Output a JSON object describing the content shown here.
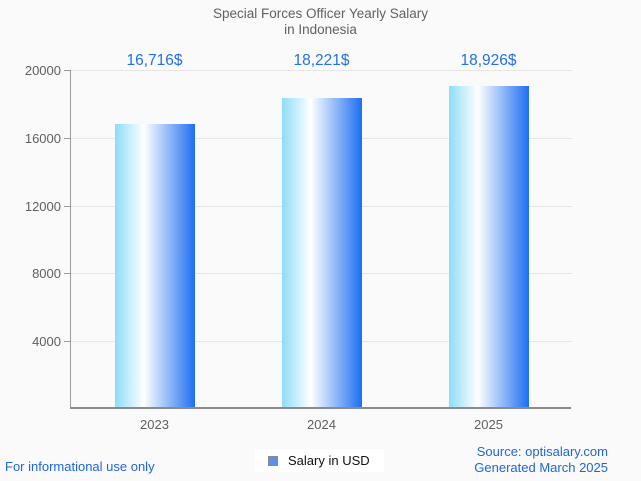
{
  "title": {
    "line1": "Special Forces Officer Yearly Salary",
    "line2": "in Indonesia"
  },
  "legend": {
    "label": "Salary in USD"
  },
  "footer": {
    "disclaimer": "For informational use only",
    "source": "Source: optisalary.com",
    "generated": "Generated March 2025"
  },
  "chart_data": {
    "type": "bar",
    "title": "Special Forces Officer Yearly Salary in Indonesia",
    "categories": [
      "2023",
      "2024",
      "2025"
    ],
    "values": [
      16716,
      18221,
      18926
    ],
    "value_labels": [
      "16,716$",
      "18,221$",
      "18,926$"
    ],
    "series": [
      {
        "name": "Salary in USD",
        "values": [
          16716,
          18221,
          18926
        ]
      }
    ],
    "xlabel": "",
    "ylabel": "",
    "ylim": [
      0,
      20000
    ],
    "yticks": [
      4000,
      8000,
      12000,
      16000,
      20000
    ],
    "grid": "horizontal",
    "legend_position": "bottom-center",
    "bar_style": "horizontal blue gradient"
  },
  "colors": {
    "background": "#fafafa",
    "title_text": "#616161",
    "axis_text": "#5f5f5f",
    "value_text": "#2271e3",
    "link_text": "#1f65da",
    "grid_line": "#e6e6e6",
    "axis_line": "#9a9a9a",
    "baseline": "#8a8a8a",
    "bar_gradient_left": "#8edcf9",
    "bar_gradient_mid": "#ffffff",
    "bar_gradient_right": "#1d6ff2",
    "legend_swatch_fill": "#5b92e8",
    "legend_swatch_border": "#8a8a8a"
  }
}
